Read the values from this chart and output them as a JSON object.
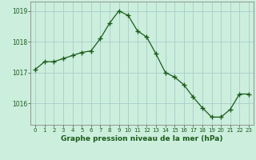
{
  "x": [
    0,
    1,
    2,
    3,
    4,
    5,
    6,
    7,
    8,
    9,
    10,
    11,
    12,
    13,
    14,
    15,
    16,
    17,
    18,
    19,
    20,
    21,
    22,
    23
  ],
  "y": [
    1017.1,
    1017.35,
    1017.35,
    1017.45,
    1017.55,
    1017.65,
    1017.7,
    1018.1,
    1018.6,
    1019.0,
    1018.85,
    1018.35,
    1018.15,
    1017.6,
    1017.0,
    1016.85,
    1016.6,
    1016.2,
    1015.85,
    1015.55,
    1015.55,
    1015.8,
    1016.3,
    1016.3
  ],
  "ylim": [
    1015.3,
    1019.3
  ],
  "yticks": [
    1016,
    1017,
    1018,
    1019
  ],
  "xticks": [
    0,
    1,
    2,
    3,
    4,
    5,
    6,
    7,
    8,
    9,
    10,
    11,
    12,
    13,
    14,
    15,
    16,
    17,
    18,
    19,
    20,
    21,
    22,
    23
  ],
  "line_color": "#1a5c1a",
  "marker_color": "#1a5c1a",
  "bg_color": "#cceedd",
  "grid_color": "#aacccc",
  "xlabel": "Graphe pression niveau de la mer (hPa)",
  "xlabel_color": "#1a5c1a",
  "tick_color": "#1a5c1a",
  "axis_color": "#888888",
  "figsize": [
    3.2,
    2.0
  ],
  "dpi": 100
}
